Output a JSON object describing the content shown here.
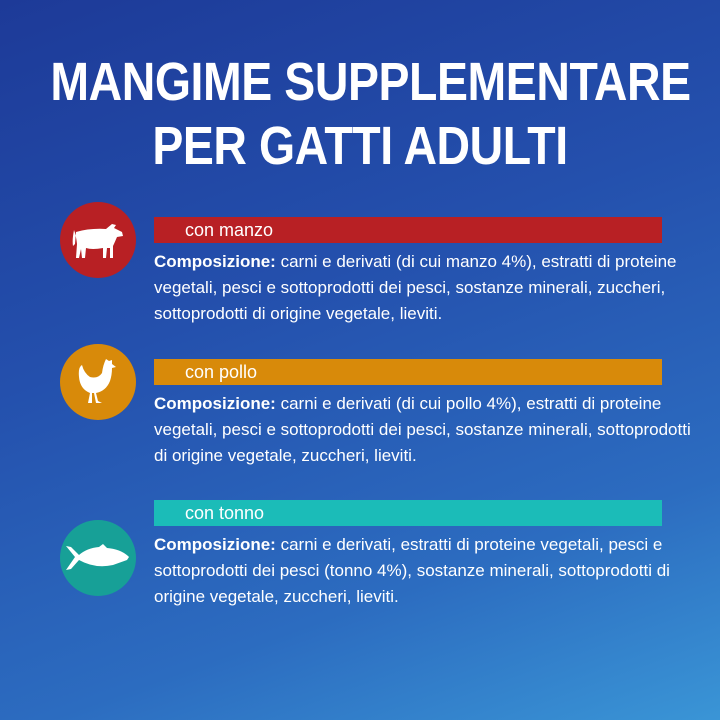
{
  "title": {
    "line1": "MANGIME SUPPLEMENTARE",
    "line2": "PER GATTI ADULTI"
  },
  "variants": [
    {
      "label": "con manzo",
      "icon": "cow-icon",
      "color": "#b82024",
      "composition_label": "Composizione:",
      "composition": "carni e derivati (di cui manzo 4%), estratti di proteine vegetali, pesci e sottoprodotti dei pesci, sostanze minerali, zuccheri, sottoprodotti di origine vegetale, lieviti."
    },
    {
      "label": "con pollo",
      "icon": "chicken-icon",
      "color": "#d88a0a",
      "composition_label": "Composizione:",
      "composition": "carni e derivati (di cui pollo 4%), estratti di proteine vegetali, pesci e sottoprodotti dei pesci, sostanze minerali, sottoprodotti di origine vegetale, zuccheri, lieviti."
    },
    {
      "label": "con tonno",
      "icon": "fish-icon",
      "color": "#1bbcb8",
      "circle_color": "#17a097",
      "composition_label": "Composizione:",
      "composition": "carni e derivati, estratti di proteine vegetali, pesci e sottoprodotti dei pesci (tonno 4%), sostanze minerali, sottoprodotti di origine vegetale, zuccheri, lieviti."
    }
  ]
}
